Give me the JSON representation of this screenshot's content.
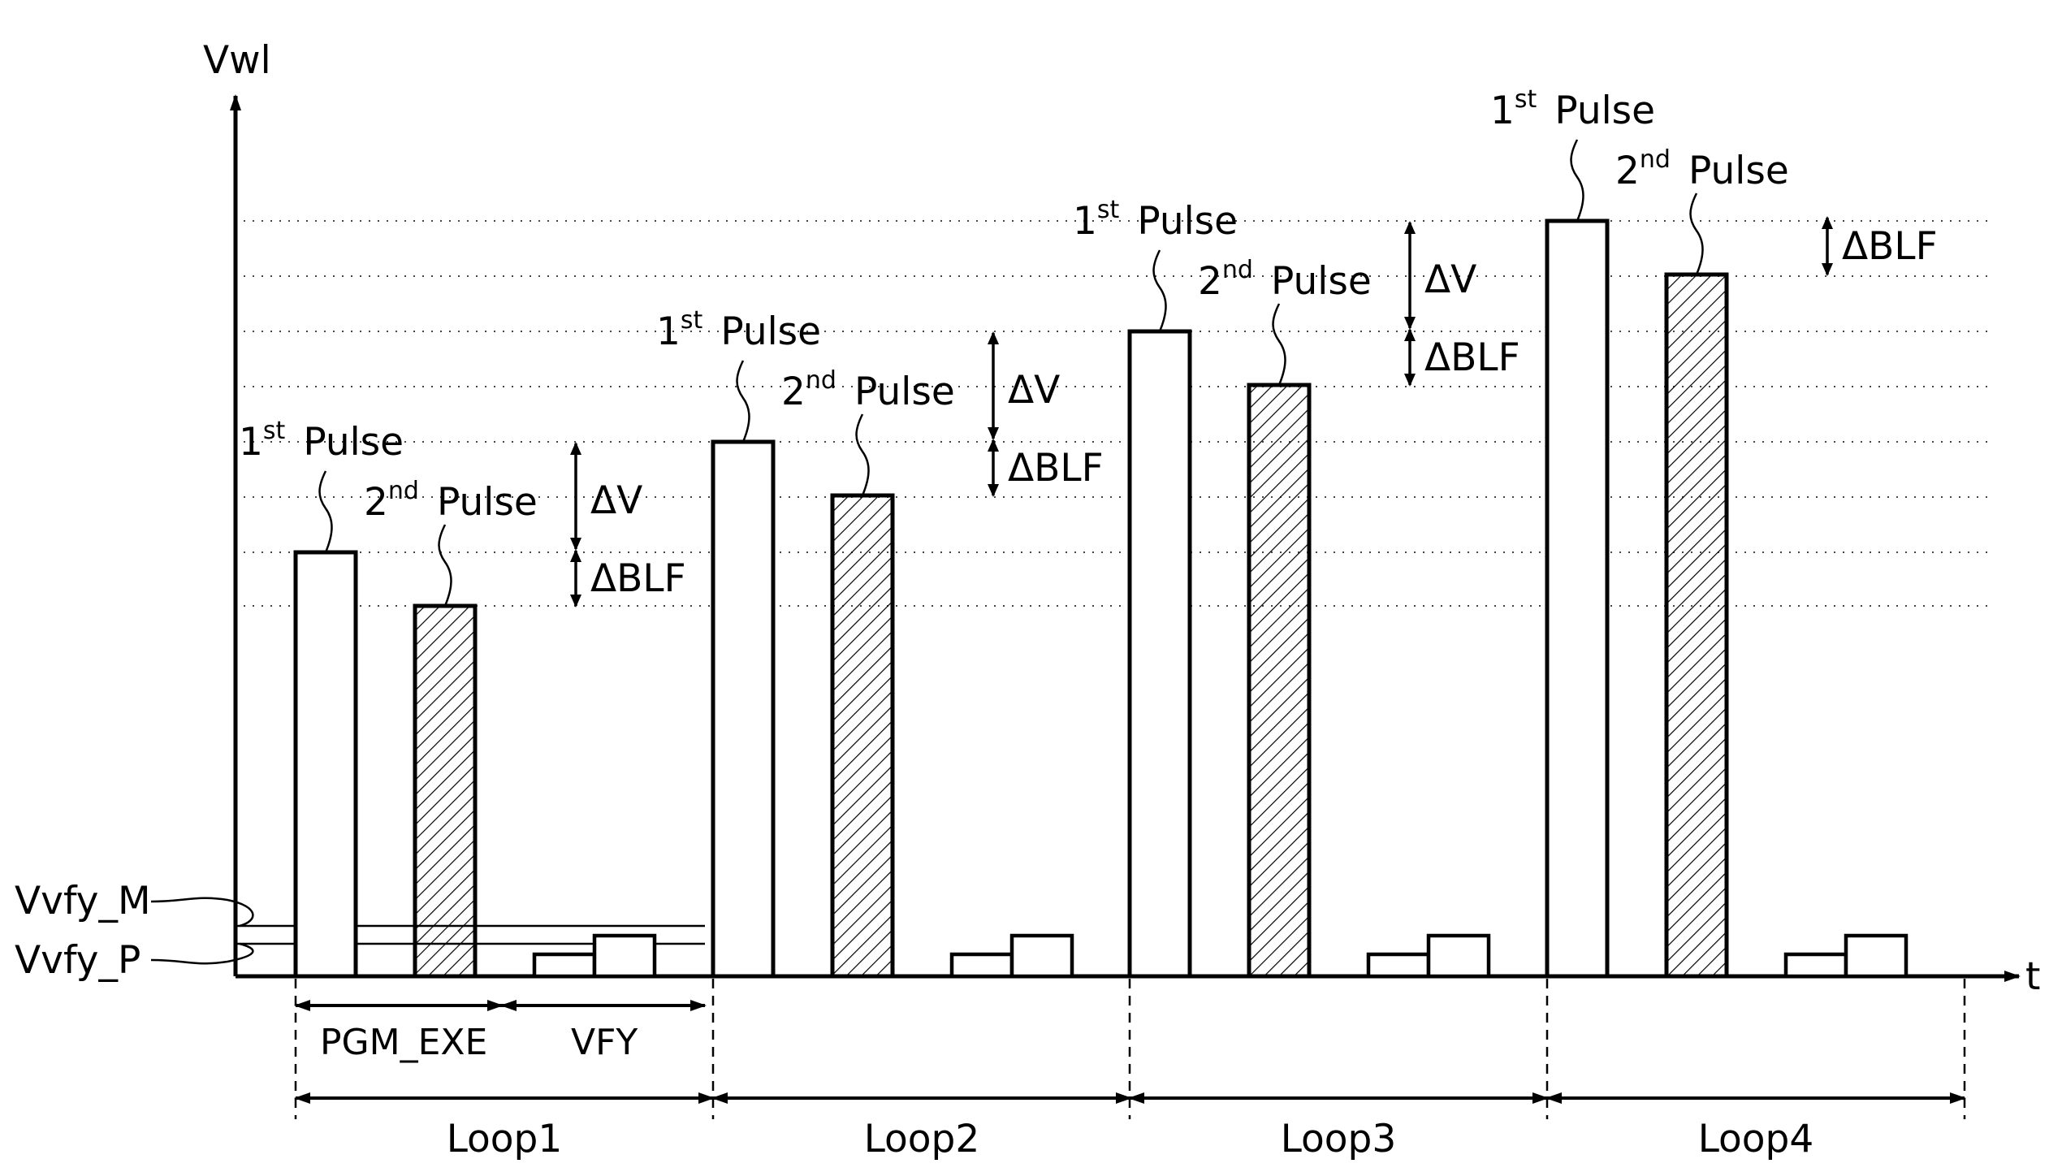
{
  "axes": {
    "y_label": "Vwl",
    "x_label": "t"
  },
  "verify_levels": {
    "m_label": "Vvfy_M",
    "p_label": "Vvfy_P"
  },
  "phases": {
    "pgm_label": "PGM_EXE",
    "vfy_label": "VFY"
  },
  "pulse_labels": {
    "first_num": "1",
    "first_sup": "st",
    "second_num": "2",
    "second_sup": "nd",
    "word": "Pulse"
  },
  "deltas": {
    "dv": "ΔV",
    "dblf": "ΔBLF"
  },
  "loops": [
    {
      "label": "Loop1",
      "show_dv": true,
      "show_dblf": true
    },
    {
      "label": "Loop2",
      "show_dv": true,
      "show_dblf": true
    },
    {
      "label": "Loop3",
      "show_dv": true,
      "show_dblf": true
    },
    {
      "label": "Loop4",
      "show_dv": false,
      "show_dblf": true
    }
  ],
  "colors": {
    "line": "#000000",
    "hatch": "#000000",
    "grid": "#444444"
  }
}
